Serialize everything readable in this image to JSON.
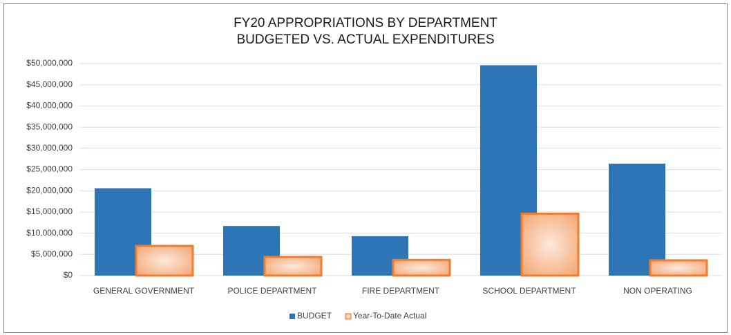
{
  "chart_data": {
    "type": "bar",
    "title": [
      "FY20 APPROPRIATIONS BY DEPARTMENT",
      "BUDGETED VS. ACTUAL EXPENDITURES"
    ],
    "categories": [
      "GENERAL GOVERNMENT",
      "POLICE DEPARTMENT",
      "FIRE DEPARTMENT",
      "SCHOOL DEPARTMENT",
      "NON OPERATING"
    ],
    "series": [
      {
        "name": "BUDGET",
        "color": "#2e75b6",
        "values": [
          20600000,
          11700000,
          9300000,
          49600000,
          26400000
        ]
      },
      {
        "name": "Year-To-Date Actual",
        "color": "#ed7d31",
        "values": [
          7000000,
          4400000,
          3700000,
          14600000,
          3600000
        ]
      }
    ],
    "ylim": [
      0,
      50000000
    ],
    "yticks": [
      {
        "value": 0,
        "label": "$0"
      },
      {
        "value": 5000000,
        "label": "$5,000,000"
      },
      {
        "value": 10000000,
        "label": "$10,000,000"
      },
      {
        "value": 15000000,
        "label": "$15,000,000"
      },
      {
        "value": 20000000,
        "label": "$20,000,000"
      },
      {
        "value": 25000000,
        "label": "$25,000,000"
      },
      {
        "value": 30000000,
        "label": "$30,000,000"
      },
      {
        "value": 35000000,
        "label": "$35,000,000"
      },
      {
        "value": 40000000,
        "label": "$40,000,000"
      },
      {
        "value": 45000000,
        "label": "$45,000,000"
      },
      {
        "value": 50000000,
        "label": "$50,000,000"
      }
    ],
    "grid": true,
    "legend": "bottom"
  }
}
